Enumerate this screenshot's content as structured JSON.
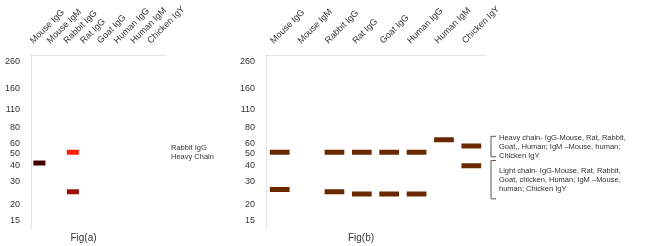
{
  "chart_data": [
    {
      "type": "scatter",
      "title": "Fig(a)",
      "categories": [
        "Mouse IgG",
        "Mouse IgM",
        "Rabbit IgG",
        "Rat IgG",
        "Goat IgG",
        "Human IgG",
        "Human IgM",
        "Chicken IgY"
      ],
      "series": [
        {
          "color": "#ff2200",
          "values": [
            null,
            null,
            51,
            null,
            null,
            null,
            null,
            null
          ]
        },
        {
          "color": "#991100",
          "values": [
            null,
            null,
            25,
            null,
            null,
            null,
            null,
            null
          ]
        },
        {
          "color": "#440000",
          "values": [
            42,
            null,
            null,
            null,
            null,
            null,
            null,
            null
          ]
        }
      ],
      "ylim": [
        13,
        290
      ],
      "yticks": [
        15,
        20,
        30,
        40,
        50,
        60,
        80,
        110,
        160,
        260
      ],
      "log": "y",
      "grid": false,
      "marker": "line",
      "annotations": [
        {
          "text": "Rabbit IgG\nHeavy Chain",
          "y": 51
        }
      ]
    },
    {
      "type": "scatter",
      "title": "Fig(b)",
      "categories": [
        "Mouse IgG",
        "Mouse IgM",
        "Rabbit IgG",
        "Rat IgG",
        "Goat IgG",
        "Human IgG",
        "Human IgM",
        "Chicken IgY"
      ],
      "series": [
        {
          "color": "#6a2800",
          "values": [
            51,
            null,
            51,
            51,
            51,
            51,
            64,
            57
          ]
        },
        {
          "color": "#6a2800",
          "values": [
            26,
            null,
            25,
            24,
            24,
            24,
            null,
            40
          ]
        }
      ],
      "ylim": [
        13,
        290
      ],
      "yticks": [
        15,
        20,
        30,
        40,
        50,
        60,
        80,
        110,
        160,
        260
      ],
      "log": "y",
      "grid": false,
      "marker": "line",
      "annotations": [
        {
          "text": "Heavy chain- IgG-Mouse, Rat, Rabbit,\nGoat,, Human; IgM –Mouse, human;\nChicken IgY",
          "y": [
            47,
            68
          ]
        },
        {
          "text": "Light chain- IgG-Mouse, Rat, Rabbit,\nGoat, chicken, Human; IgM –Mouse,\nhuman; Chicken IgY",
          "y": [
            22,
            44
          ]
        }
      ]
    }
  ]
}
